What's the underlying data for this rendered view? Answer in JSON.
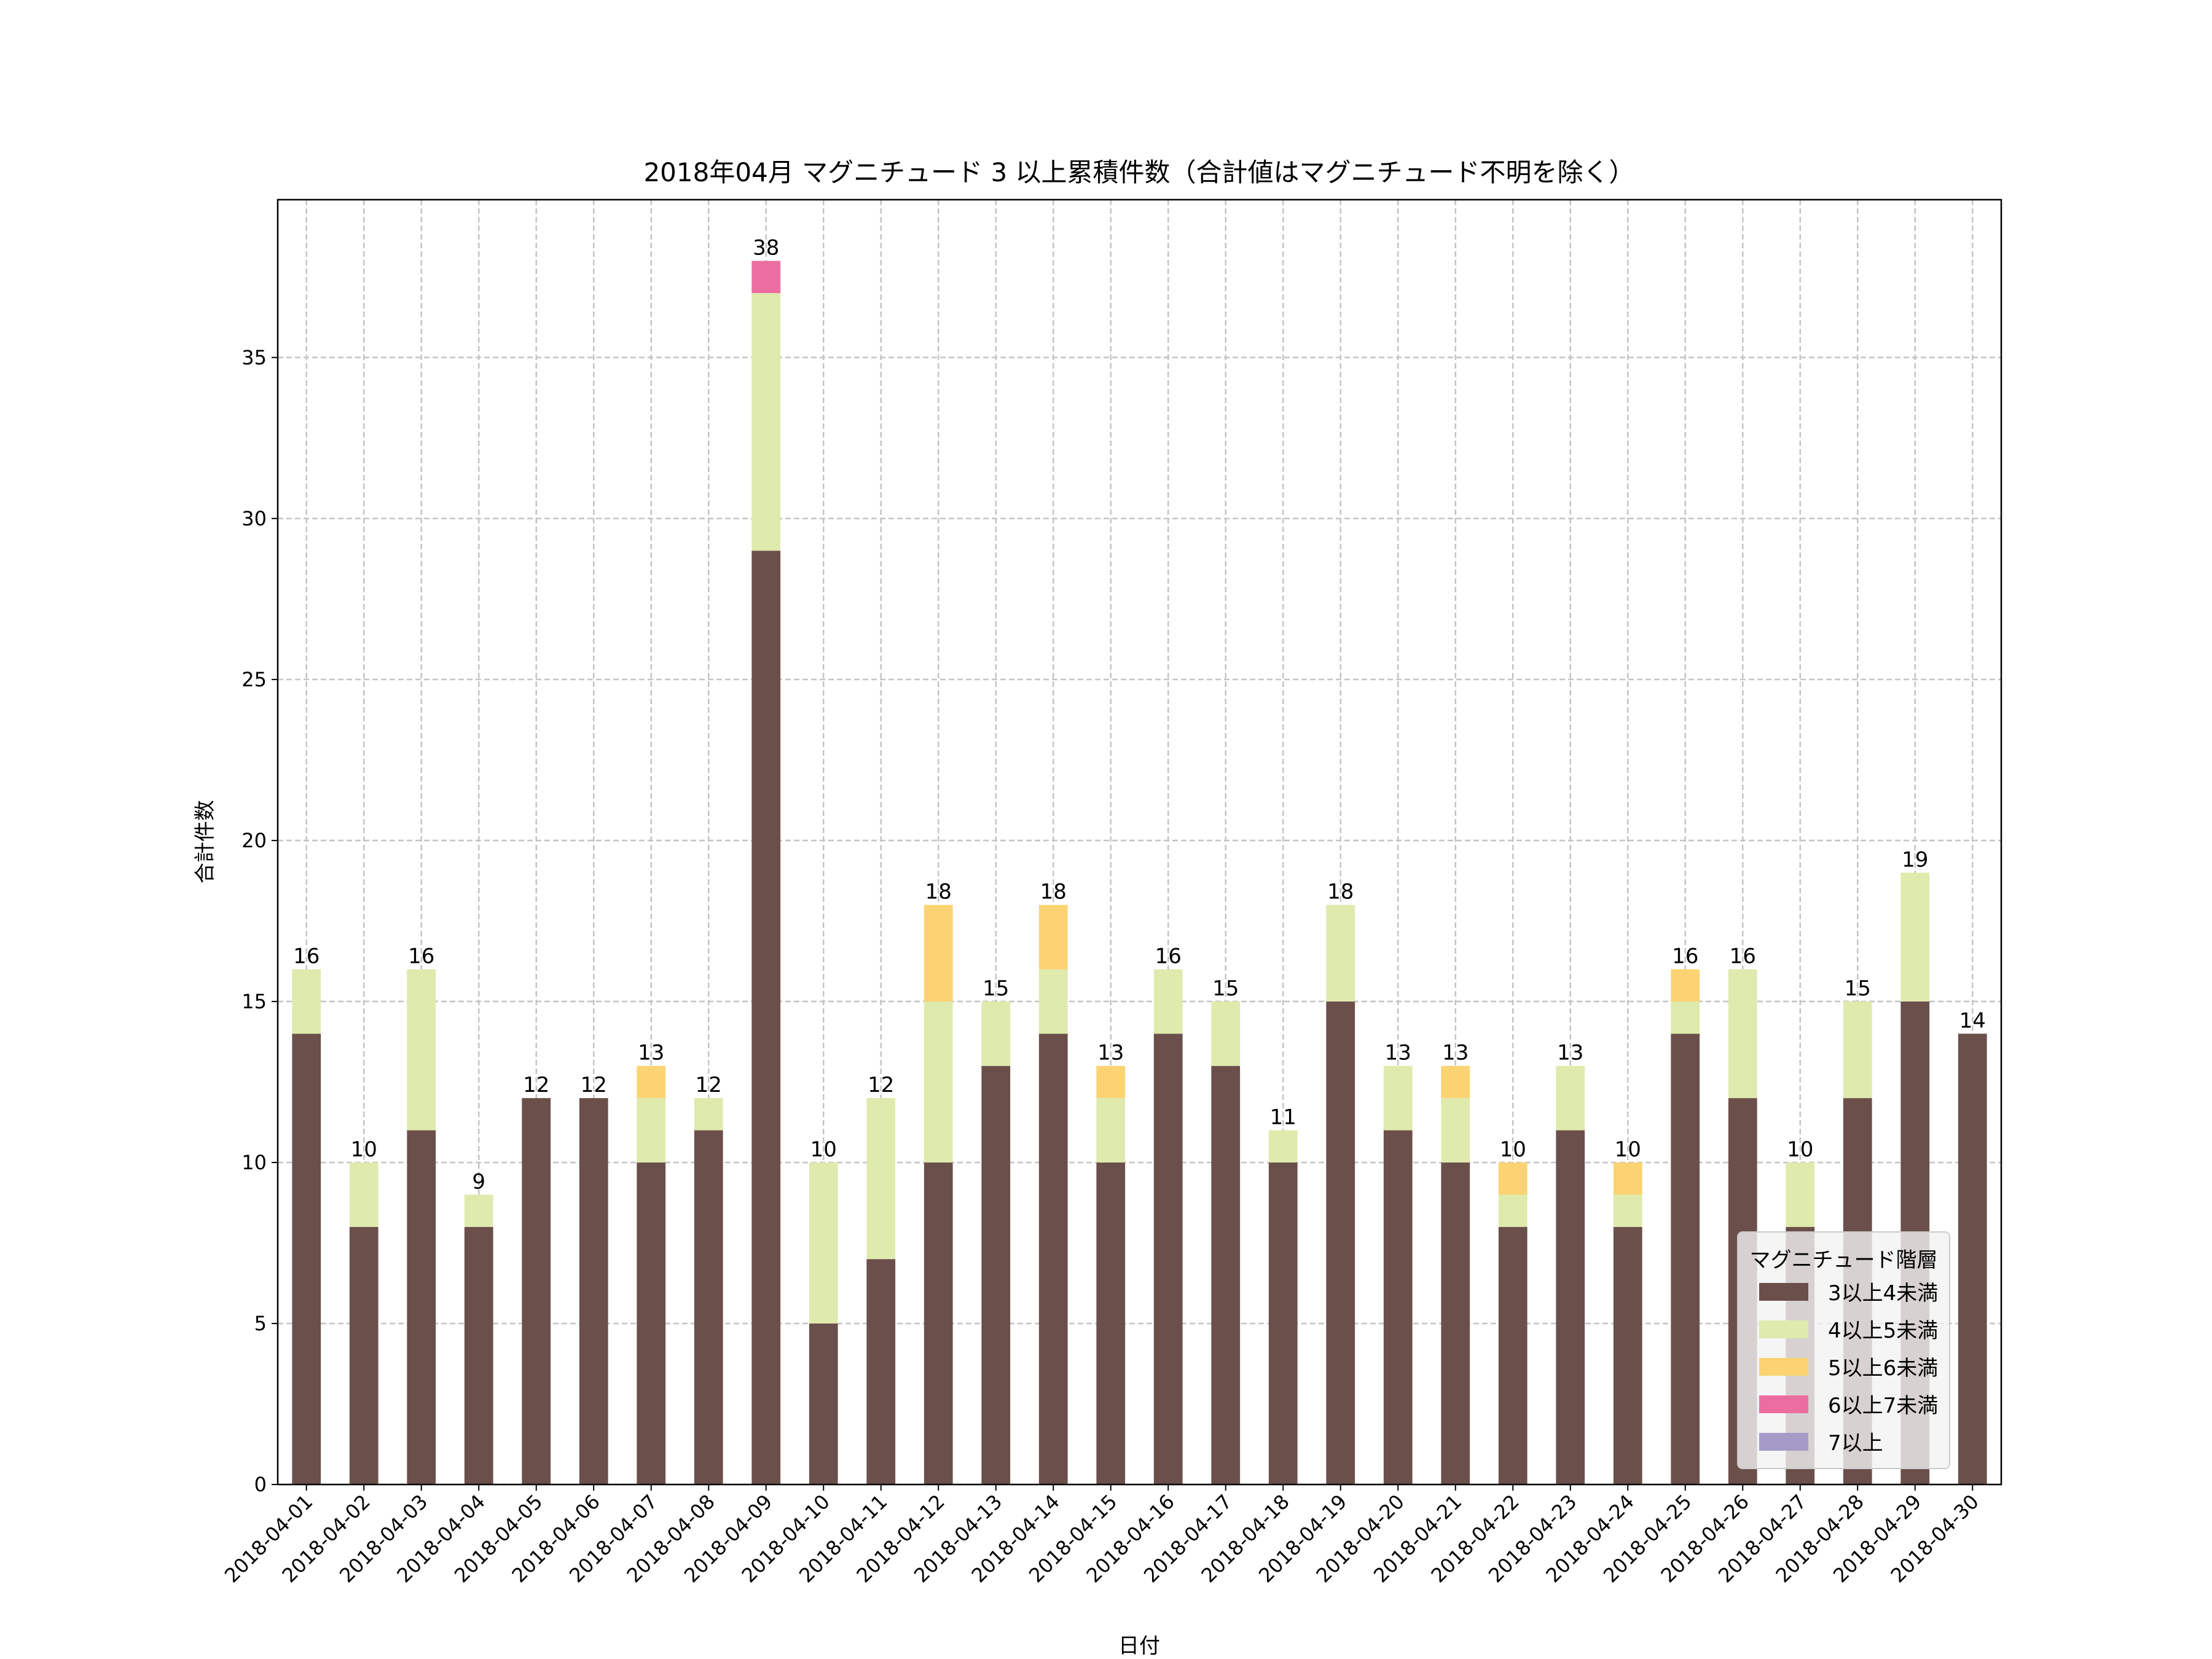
{
  "chart_data": {
    "type": "bar",
    "stacked": true,
    "title": "2018年04月 マグニチュード 3 以上累積件数（合計値はマグニチュード不明を除く）",
    "xlabel": "日付",
    "ylabel": "合計件数",
    "ylim": [
      0,
      39.9
    ],
    "yticks": [
      0,
      5,
      10,
      15,
      20,
      25,
      30,
      35
    ],
    "grid": true,
    "legend": {
      "title": "マグニチュード階層",
      "placement": "lower-right"
    },
    "categories": [
      "2018-04-01",
      "2018-04-02",
      "2018-04-03",
      "2018-04-04",
      "2018-04-05",
      "2018-04-06",
      "2018-04-07",
      "2018-04-08",
      "2018-04-09",
      "2018-04-10",
      "2018-04-11",
      "2018-04-12",
      "2018-04-13",
      "2018-04-14",
      "2018-04-15",
      "2018-04-16",
      "2018-04-17",
      "2018-04-18",
      "2018-04-19",
      "2018-04-20",
      "2018-04-21",
      "2018-04-22",
      "2018-04-23",
      "2018-04-24",
      "2018-04-25",
      "2018-04-26",
      "2018-04-27",
      "2018-04-28",
      "2018-04-29",
      "2018-04-30"
    ],
    "series": [
      {
        "name": "3以上4未満",
        "color": "#6b4f4a",
        "values": [
          14,
          8,
          11,
          8,
          12,
          12,
          10,
          11,
          29,
          5,
          7,
          10,
          13,
          14,
          10,
          14,
          13,
          10,
          15,
          11,
          10,
          8,
          11,
          8,
          14,
          12,
          8,
          12,
          15,
          14
        ]
      },
      {
        "name": "4以上5未満",
        "color": "#dfeaad",
        "values": [
          2,
          2,
          5,
          1,
          0,
          0,
          2,
          1,
          8,
          5,
          5,
          5,
          2,
          2,
          2,
          2,
          2,
          1,
          3,
          2,
          2,
          1,
          2,
          1,
          1,
          4,
          2,
          3,
          4,
          0
        ]
      },
      {
        "name": "5以上6未満",
        "color": "#fbd373",
        "values": [
          0,
          0,
          0,
          0,
          0,
          0,
          1,
          0,
          0,
          0,
          0,
          3,
          0,
          2,
          1,
          0,
          0,
          0,
          0,
          0,
          1,
          1,
          0,
          1,
          1,
          0,
          0,
          0,
          0,
          0
        ]
      },
      {
        "name": "6以上7未満",
        "color": "#ec6ea0",
        "values": [
          0,
          0,
          0,
          0,
          0,
          0,
          0,
          0,
          1,
          0,
          0,
          0,
          0,
          0,
          0,
          0,
          0,
          0,
          0,
          0,
          0,
          0,
          0,
          0,
          0,
          0,
          0,
          0,
          0,
          0
        ]
      },
      {
        "name": "7以上",
        "color": "#a59ac8",
        "values": [
          0,
          0,
          0,
          0,
          0,
          0,
          0,
          0,
          0,
          0,
          0,
          0,
          0,
          0,
          0,
          0,
          0,
          0,
          0,
          0,
          0,
          0,
          0,
          0,
          0,
          0,
          0,
          0,
          0,
          0
        ]
      }
    ],
    "totals": [
      16,
      10,
      16,
      9,
      12,
      12,
      13,
      12,
      38,
      10,
      12,
      18,
      15,
      18,
      13,
      16,
      15,
      11,
      18,
      13,
      13,
      10,
      13,
      10,
      16,
      16,
      10,
      15,
      19,
      14
    ]
  }
}
